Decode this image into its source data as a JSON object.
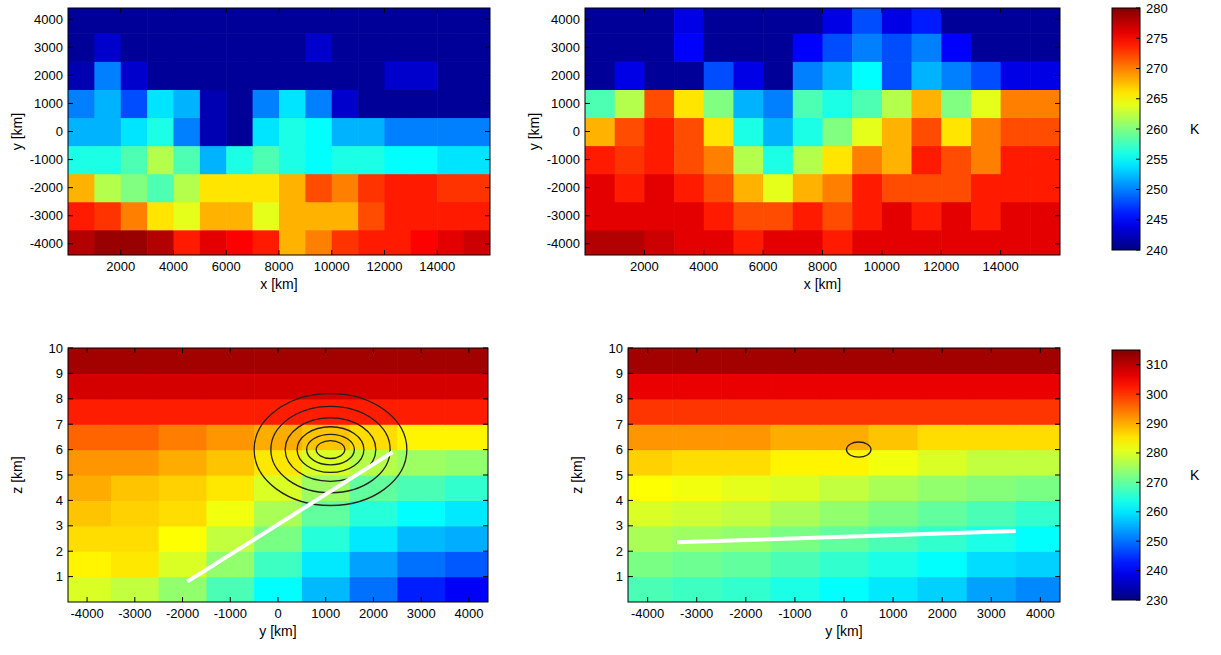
{
  "chart_data": [
    {
      "type": "heatmap",
      "x_label": "x [km]",
      "y_label": "y [km]",
      "xlim": [
        0,
        16000
      ],
      "xticks": [
        2000,
        4000,
        6000,
        8000,
        10000,
        12000,
        14000
      ],
      "ylim": [
        -4400,
        4400
      ],
      "yticks": [
        -4000,
        -3000,
        -2000,
        -1000,
        0,
        1000,
        2000,
        3000,
        4000
      ],
      "x_edges": [
        0,
        1000,
        2000,
        3000,
        4000,
        5000,
        6000,
        7000,
        8000,
        9000,
        10000,
        11000,
        12000,
        13000,
        14000,
        15000,
        16000
      ],
      "y_edges": [
        -4500,
        -3500,
        -2500,
        -1500,
        -500,
        500,
        1500,
        2500,
        3500,
        4500
      ],
      "cells": [
        [
          278,
          279,
          279,
          278,
          274,
          276,
          275,
          274,
          268,
          270,
          273,
          274,
          274,
          275,
          276,
          277
        ],
        [
          274,
          273,
          270,
          266,
          264,
          268,
          268,
          264,
          268,
          268,
          268,
          272,
          274,
          274,
          274,
          274
        ],
        [
          268,
          262,
          260,
          258,
          262,
          266,
          266,
          266,
          268,
          272,
          270,
          273,
          274,
          274,
          273,
          273
        ],
        [
          256,
          256,
          258,
          262,
          258,
          252,
          256,
          258,
          256,
          255,
          256,
          256,
          255,
          255,
          254,
          254
        ],
        [
          252,
          252,
          254,
          256,
          250,
          242,
          241,
          254,
          256,
          255,
          252,
          252,
          250,
          250,
          250,
          250
        ],
        [
          250,
          252,
          248,
          254,
          252,
          242,
          241,
          250,
          254,
          250,
          243,
          241,
          241,
          241,
          241,
          241
        ],
        [
          242,
          250,
          243,
          241,
          241,
          241,
          241,
          241,
          241,
          241,
          241,
          241,
          243,
          243,
          241,
          241
        ],
        [
          241,
          243,
          241,
          241,
          241,
          241,
          241,
          241,
          241,
          243,
          241,
          241,
          241,
          241,
          241,
          241
        ],
        [
          241,
          241,
          241,
          241,
          241,
          241,
          241,
          241,
          241,
          241,
          241,
          241,
          241,
          241,
          241,
          241
        ]
      ],
      "colorbar": {
        "lim": [
          240,
          280
        ]
      }
    },
    {
      "type": "heatmap",
      "x_label": "x [km]",
      "y_label": "y [km]",
      "xlim": [
        0,
        16000
      ],
      "xticks": [
        2000,
        4000,
        6000,
        8000,
        10000,
        12000,
        14000
      ],
      "ylim": [
        -4400,
        4400
      ],
      "yticks": [
        -4000,
        -3000,
        -2000,
        -1000,
        0,
        1000,
        2000,
        3000,
        4000
      ],
      "x_edges": [
        0,
        1000,
        2000,
        3000,
        4000,
        5000,
        6000,
        7000,
        8000,
        9000,
        10000,
        11000,
        12000,
        13000,
        14000,
        15000,
        16000
      ],
      "y_edges": [
        -4500,
        -3500,
        -2500,
        -1500,
        -500,
        500,
        1500,
        2500,
        3500,
        4500
      ],
      "cells": [
        [
          278,
          278,
          277,
          276,
          276,
          274,
          276,
          276,
          274,
          276,
          276,
          276,
          276,
          276,
          276,
          276
        ],
        [
          276,
          276,
          276,
          276,
          274,
          272,
          272,
          274,
          272,
          274,
          276,
          274,
          276,
          274,
          276,
          276
        ],
        [
          276,
          274,
          276,
          274,
          272,
          268,
          264,
          268,
          270,
          274,
          272,
          272,
          272,
          274,
          274,
          274
        ],
        [
          274,
          273,
          274,
          272,
          270,
          262,
          256,
          262,
          266,
          270,
          268,
          274,
          272,
          270,
          274,
          274
        ],
        [
          268,
          272,
          274,
          272,
          266,
          256,
          252,
          256,
          260,
          264,
          268,
          272,
          266,
          270,
          272,
          272
        ],
        [
          258,
          262,
          272,
          266,
          260,
          252,
          250,
          258,
          256,
          258,
          262,
          268,
          260,
          264,
          270,
          270
        ],
        [
          241,
          244,
          241,
          241,
          248,
          244,
          241,
          250,
          252,
          255,
          248,
          252,
          250,
          248,
          244,
          244
        ],
        [
          241,
          241,
          241,
          245,
          241,
          241,
          241,
          245,
          248,
          250,
          248,
          250,
          245,
          241,
          241,
          241
        ],
        [
          241,
          241,
          241,
          244,
          241,
          241,
          241,
          241,
          244,
          248,
          244,
          246,
          241,
          241,
          241,
          241
        ]
      ],
      "colorbar": {
        "lim": [
          240,
          280
        ],
        "ticks": [
          240,
          245,
          250,
          255,
          260,
          265,
          270,
          275,
          280
        ],
        "label": "K"
      }
    },
    {
      "type": "heatmap",
      "x_label": "y [km]",
      "y_label": "z [km]",
      "xlim": [
        -4400,
        4400
      ],
      "xticks": [
        -4000,
        -3000,
        -2000,
        -1000,
        0,
        1000,
        2000,
        3000,
        4000
      ],
      "ylim": [
        0,
        10
      ],
      "yticks": [
        1,
        2,
        3,
        4,
        5,
        6,
        7,
        8,
        9,
        10
      ],
      "x_edges": [
        -4500,
        -3500,
        -2500,
        -1500,
        -500,
        500,
        1500,
        2500,
        3500,
        4500
      ],
      "y_edges": [
        0,
        1,
        2,
        3,
        4,
        5,
        6,
        7,
        8,
        9,
        10
      ],
      "cells": [
        [
          280,
          278,
          274,
          268,
          262,
          256,
          250,
          243,
          240
        ],
        [
          284,
          285,
          280,
          274,
          267,
          260,
          254,
          250,
          248
        ],
        [
          286,
          286,
          283,
          278,
          272,
          265,
          260,
          256,
          255
        ],
        [
          288,
          287,
          286,
          282,
          276,
          270,
          265,
          262,
          260
        ],
        [
          290,
          288,
          287,
          285,
          280,
          275,
          270,
          268,
          266
        ],
        [
          292,
          292,
          290,
          288,
          285,
          280,
          277,
          275,
          274
        ],
        [
          296,
          296,
          294,
          292,
          290,
          288,
          286,
          284,
          284
        ],
        [
          302,
          302,
          302,
          302,
          302,
          302,
          302,
          302,
          302
        ],
        [
          308,
          308,
          308,
          308,
          308,
          308,
          308,
          308,
          308
        ],
        [
          312,
          312,
          312,
          312,
          312,
          312,
          312,
          312,
          312
        ]
      ],
      "series": [
        {
          "color": "#ffffff",
          "x": [
            -1900,
            2400
          ],
          "values": [
            0.8,
            5.9
          ]
        }
      ],
      "contours": [
        {
          "center_x": 1100,
          "center_y": 6,
          "half_widths": [
            300,
            500,
            700,
            950,
            1250,
            1600
          ],
          "half_heights": [
            0.35,
            0.6,
            0.9,
            1.25,
            1.7,
            2.2
          ]
        }
      ],
      "colorbar": {
        "lim": [
          230,
          315
        ]
      }
    },
    {
      "type": "heatmap",
      "x_label": "y [km]",
      "y_label": "z [km]",
      "xlim": [
        -4400,
        4400
      ],
      "xticks": [
        -4000,
        -3000,
        -2000,
        -1000,
        0,
        1000,
        2000,
        3000,
        4000
      ],
      "ylim": [
        0,
        10
      ],
      "yticks": [
        1,
        2,
        3,
        4,
        5,
        6,
        7,
        8,
        9,
        10
      ],
      "x_edges": [
        -4500,
        -3500,
        -2500,
        -1500,
        -500,
        500,
        1500,
        2500,
        3500,
        4500
      ],
      "y_edges": [
        0,
        1,
        2,
        3,
        4,
        5,
        6,
        7,
        8,
        9,
        10
      ],
      "cells": [
        [
          268,
          267,
          266,
          264,
          262,
          260,
          258,
          254,
          252
        ],
        [
          272,
          271,
          270,
          268,
          266,
          264,
          262,
          259,
          258
        ],
        [
          276,
          275,
          274,
          272,
          270,
          268,
          266,
          264,
          262
        ],
        [
          280,
          279,
          278,
          276,
          274,
          272,
          270,
          268,
          266
        ],
        [
          283,
          282,
          281,
          280,
          278,
          276,
          274,
          273,
          272
        ],
        [
          287,
          286,
          286,
          284,
          284,
          282,
          280,
          278,
          278
        ],
        [
          292,
          292,
          292,
          290,
          290,
          288,
          286,
          286,
          286
        ],
        [
          300,
          300,
          300,
          300,
          300,
          300,
          300,
          300,
          300
        ],
        [
          306,
          306,
          306,
          306,
          306,
          306,
          306,
          306,
          306
        ],
        [
          312,
          312,
          312,
          312,
          312,
          312,
          312,
          312,
          312
        ]
      ],
      "series": [
        {
          "color": "#ffffff",
          "x": [
            -3400,
            3500
          ],
          "values": [
            2.35,
            2.8
          ]
        }
      ],
      "contours": [
        {
          "center_x": 300,
          "center_y": 6,
          "half_widths": [
            250
          ],
          "half_heights": [
            0.3
          ]
        }
      ],
      "colorbar": {
        "lim": [
          230,
          315
        ],
        "ticks": [
          230,
          240,
          250,
          260,
          270,
          280,
          290,
          300,
          310
        ],
        "label": "K"
      }
    }
  ]
}
